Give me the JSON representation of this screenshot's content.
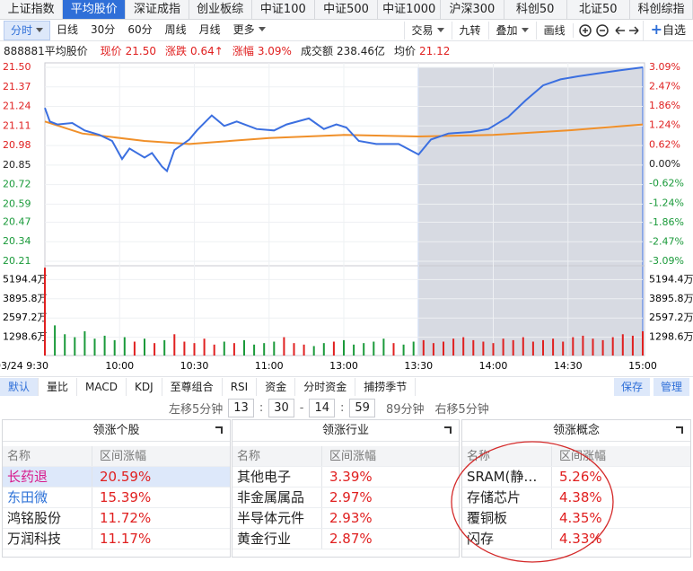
{
  "tabs": [
    "上证指数",
    "平均股价",
    "深证成指",
    "创业板综",
    "中证100",
    "中证500",
    "中证1000",
    "沪深300",
    "科创50",
    "北证50",
    "科创综指"
  ],
  "active_tab": 1,
  "periods": [
    "分时",
    "日线",
    "30分",
    "60分",
    "周线",
    "月线",
    "更多"
  ],
  "tools": [
    "交易",
    "九转",
    "叠加",
    "画线"
  ],
  "add_watch": "自选",
  "info": {
    "code_name": "888881平均股价",
    "items": [
      {
        "label": "现价",
        "value": "21.50"
      },
      {
        "label": "涨跌",
        "value": "0.64↑"
      },
      {
        "label": "涨幅",
        "value": "3.09%"
      },
      {
        "label": "成交额",
        "value": "238.46亿"
      },
      {
        "label": "均价",
        "value": "21.12"
      }
    ]
  },
  "chart_data": {
    "type": "line",
    "price_color": "#3b6fe0",
    "avg_color": "#f0902a",
    "up_color": "#e02020",
    "down_color": "#1a9a3a",
    "price_x": [
      0,
      2,
      5,
      11,
      16,
      22,
      27,
      31,
      34,
      40,
      43,
      47,
      49,
      52,
      58,
      61,
      67,
      72,
      77,
      85,
      92,
      97,
      106,
      112,
      117,
      121,
      126,
      133,
      142,
      150,
      155,
      162,
      171,
      178,
      186,
      193,
      200,
      207,
      214,
      222,
      231,
      240
    ],
    "price": [
      21.23,
      21.14,
      21.12,
      21.13,
      21.08,
      21.05,
      21.01,
      20.89,
      20.96,
      20.9,
      20.93,
      20.84,
      20.81,
      20.95,
      21.02,
      21.08,
      21.18,
      21.11,
      21.14,
      21.09,
      21.08,
      21.12,
      21.16,
      21.09,
      21.12,
      21.1,
      21.01,
      20.99,
      20.99,
      20.92,
      21.02,
      21.06,
      21.07,
      21.09,
      21.17,
      21.28,
      21.38,
      21.42,
      21.44,
      21.46,
      21.48,
      21.5
    ],
    "avg_x": [
      0,
      15,
      40,
      58,
      90,
      120,
      150,
      180,
      210,
      240
    ],
    "avg": [
      21.14,
      21.06,
      21.01,
      20.99,
      21.03,
      21.05,
      21.04,
      21.05,
      21.08,
      21.12
    ],
    "volume_step": 4,
    "volume": [
      6000,
      2100,
      1500,
      1300,
      1700,
      1200,
      1400,
      1100,
      1300,
      1000,
      1200,
      900,
      1100,
      1500,
      1000,
      900,
      1200,
      800,
      1000,
      900,
      1100,
      800,
      900,
      1000,
      1300,
      900,
      800,
      700,
      900,
      1000,
      1100,
      800,
      900,
      1000,
      1200,
      900,
      800,
      1000,
      1100,
      900,
      1000,
      1200,
      1300,
      1100,
      1000,
      900,
      1200,
      1100,
      1300,
      1000,
      1100,
      1200,
      1000,
      1300,
      1400,
      1200,
      1100,
      1300,
      1500,
      1400,
      1700
    ],
    "xlim": [
      0,
      240
    ],
    "xticks": [
      {
        "value": 0,
        "label": "03/24 9:30"
      },
      {
        "value": 30,
        "label": "10:00"
      },
      {
        "value": 60,
        "label": "10:30"
      },
      {
        "value": 90,
        "label": "11:00"
      },
      {
        "value": 120,
        "label": "13:00"
      },
      {
        "value": 150,
        "label": "13:30"
      },
      {
        "value": 180,
        "label": "14:00"
      },
      {
        "value": 210,
        "label": "14:30"
      },
      {
        "value": 240,
        "label": "15:00"
      }
    ],
    "ylim": [
      20.21,
      21.5
    ],
    "yticks": [
      {
        "value": 21.5,
        "label": "21.50"
      },
      21.37,
      21.24,
      21.11,
      20.98,
      20.85,
      20.72,
      20.59,
      20.47,
      20.34,
      20.21
    ],
    "pct_ylim": [
      -3.09,
      3.09
    ],
    "pct_ticks": [
      {
        "value": 3.09,
        "label": "3.09%"
      },
      {
        "value": 2.47,
        "label": "2.47%"
      },
      {
        "value": 1.86,
        "label": "1.86%"
      },
      {
        "value": 1.24,
        "label": "1.24%"
      },
      {
        "value": 0.62,
        "label": "0.62%"
      },
      {
        "value": 0,
        "label": "0.00%"
      },
      {
        "value": -0.62,
        "label": "-0.62%"
      },
      {
        "value": -1.24,
        "label": "-1.24%"
      },
      {
        "value": -1.86,
        "label": "-1.86%"
      },
      {
        "value": -2.47,
        "label": "-2.47%"
      },
      {
        "value": -3.09,
        "label": "-3.09%"
      }
    ],
    "vol_ylim": [
      0,
      6493
    ],
    "vol_ticks": [
      {
        "value": 5194.4,
        "label": "5194.4万"
      },
      {
        "value": 3895.8,
        "label": "3895.8万"
      },
      {
        "value": 2597.2,
        "label": "2597.2万"
      },
      {
        "value": 1298.6,
        "label": "1298.6万"
      }
    ]
  },
  "indicators": [
    "默认",
    "量比",
    "MACD",
    "KDJ",
    "至尊组合",
    "RSI",
    "资金",
    "分时资金",
    "捕捞季节"
  ],
  "actions": [
    "保存",
    "管理"
  ],
  "range": {
    "left": "左移5分钟",
    "start_h": "13",
    "start_m": "30",
    "end_h": "14",
    "end_m": "59",
    "duration": "89分钟",
    "right": "右移5分钟"
  },
  "panels": [
    {
      "title": "领涨个股",
      "columns": [
        "名称",
        "区间涨幅"
      ],
      "highlight": 0,
      "rows": [
        {
          "name": "长药退",
          "change": "20.59%",
          "color": "#d81b8c"
        },
        {
          "name": "东田微",
          "change": "15.39%",
          "color": "#2f73d8"
        },
        {
          "name": "鸿铭股份",
          "change": "11.72%"
        },
        {
          "name": "万润科技",
          "change": "11.17%"
        }
      ]
    },
    {
      "title": "领涨行业",
      "columns": [
        "名称",
        "区间涨幅"
      ],
      "rows": [
        {
          "name": "其他电子",
          "change": "3.39%"
        },
        {
          "name": "非金属属品",
          "change": "2.97%"
        },
        {
          "name": "半导体元件",
          "change": "2.93%"
        },
        {
          "name": "黄金行业",
          "change": "2.87%"
        }
      ]
    },
    {
      "title": "领涨概念",
      "columns": [
        "名称",
        "区间涨幅"
      ],
      "rows": [
        {
          "name": "SRAM(静…",
          "change": "5.26%"
        },
        {
          "name": "存储芯片",
          "change": "4.38%"
        },
        {
          "name": "覆铜板",
          "change": "4.35%"
        },
        {
          "name": "闪存",
          "change": "4.33%"
        }
      ]
    }
  ]
}
